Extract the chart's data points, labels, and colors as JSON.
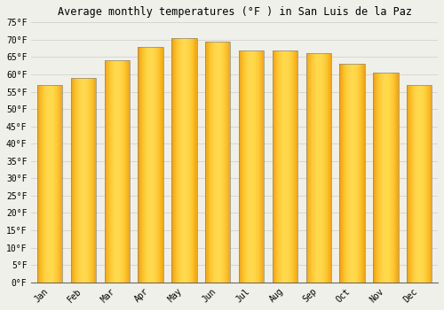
{
  "title": "Average monthly temperatures (°F ) in San Luis de la Paz",
  "months": [
    "Jan",
    "Feb",
    "Mar",
    "Apr",
    "May",
    "Jun",
    "Jul",
    "Aug",
    "Sep",
    "Oct",
    "Nov",
    "Dec"
  ],
  "values": [
    57,
    59,
    64,
    68,
    70.5,
    69.5,
    67,
    67,
    66,
    63,
    60.5,
    57
  ],
  "bar_color_left": "#F5A000",
  "bar_color_center": "#FFD84D",
  "bar_color_right": "#E89000",
  "bar_edge_color": "#888888",
  "ylim": [
    0,
    75
  ],
  "yticks": [
    0,
    5,
    10,
    15,
    20,
    25,
    30,
    35,
    40,
    45,
    50,
    55,
    60,
    65,
    70,
    75
  ],
  "ytick_labels": [
    "0°F",
    "5°F",
    "10°F",
    "15°F",
    "20°F",
    "25°F",
    "30°F",
    "35°F",
    "40°F",
    "45°F",
    "50°F",
    "55°F",
    "60°F",
    "65°F",
    "70°F",
    "75°F"
  ],
  "background_color": "#f0f0eb",
  "grid_color": "#d0d0d0",
  "title_fontsize": 8.5,
  "tick_fontsize": 7,
  "font_family": "monospace"
}
